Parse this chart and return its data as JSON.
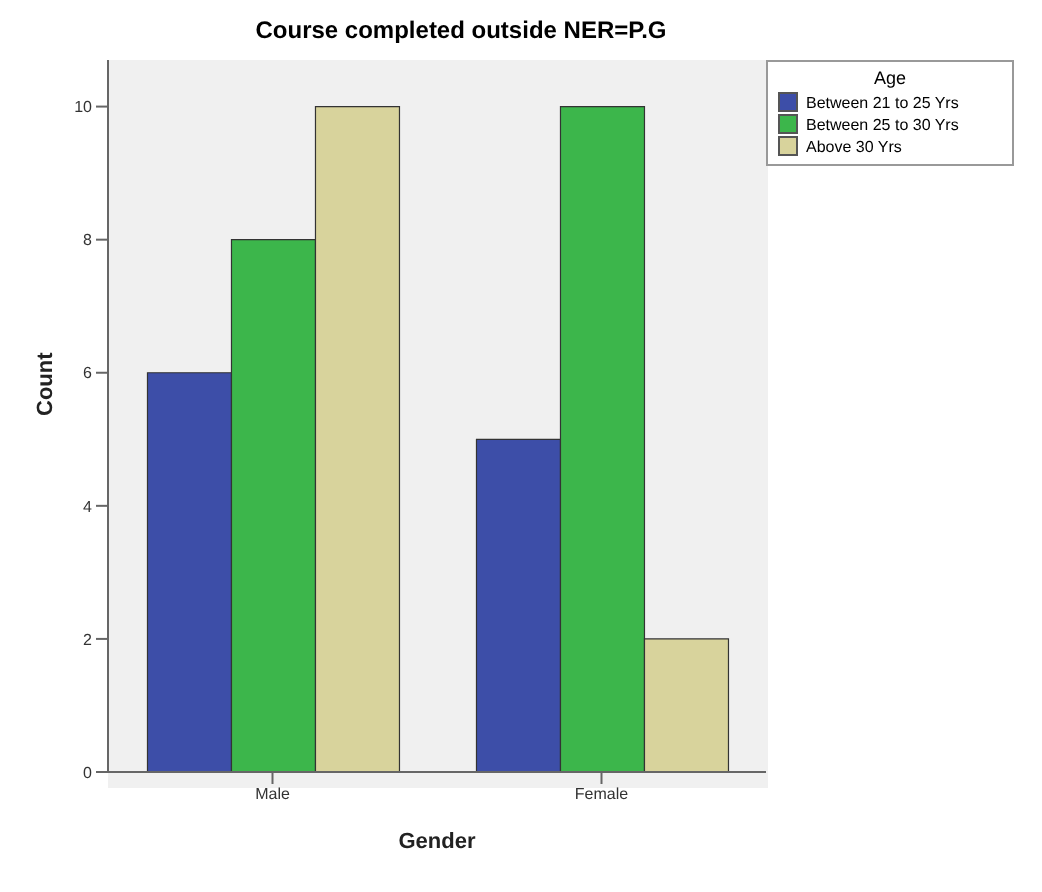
{
  "chart_data": {
    "type": "bar",
    "title": "Course completed outside NER=P.G",
    "xlabel": "Gender",
    "ylabel": "Count",
    "legend_title": "Age",
    "categories": [
      "Male",
      "Female"
    ],
    "series": [
      {
        "name": "Between 21 to 25 Yrs",
        "color": "#3d4ea8",
        "values": [
          6,
          5
        ]
      },
      {
        "name": "Between 25 to 30 Yrs",
        "color": "#3cb64b",
        "values": [
          8,
          10
        ]
      },
      {
        "name": "Above 30 Yrs",
        "color": "#d8d39c",
        "values": [
          10,
          2
        ]
      }
    ],
    "ylim": [
      0,
      10.7
    ],
    "yticks": [
      0,
      2,
      4,
      6,
      8,
      10
    ],
    "grid": false,
    "legend": "top right"
  }
}
